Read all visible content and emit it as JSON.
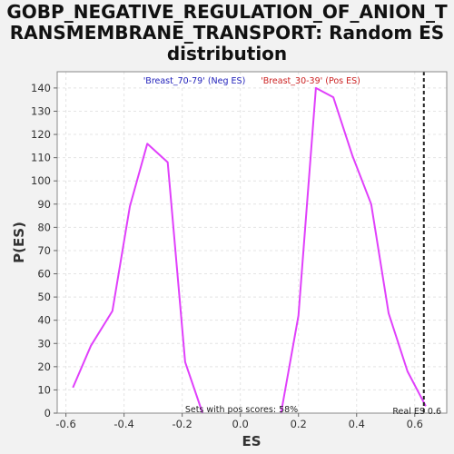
{
  "chart_data": {
    "type": "line",
    "title_lines": [
      "GOBP_NEGATIVE_REGULATION_OF_ANION_T",
      "RANSMEMBRANE_TRANSPORT: Random ES",
      "distribution"
    ],
    "xlabel": "ES",
    "ylabel": "P(ES)",
    "xlim": [
      -0.63,
      0.71
    ],
    "ylim": [
      0,
      147
    ],
    "xticks": [
      -0.6,
      -0.4,
      -0.2,
      0.0,
      0.2,
      0.4,
      0.6
    ],
    "xtick_labels": [
      "-0.6",
      "-0.4",
      "-0.2",
      "0.0",
      "0.2",
      "0.4",
      "0.6"
    ],
    "yticks": [
      0,
      10,
      20,
      30,
      40,
      50,
      60,
      70,
      80,
      90,
      100,
      110,
      120,
      130,
      140
    ],
    "ytick_labels": [
      "0",
      "10",
      "20",
      "30",
      "40",
      "50",
      "60",
      "70",
      "80",
      "90",
      "100",
      "110",
      "120",
      "130",
      "140"
    ],
    "grid": true,
    "series": [
      {
        "name": "'Breast_70-79' (Neg ES)",
        "color": "#e040fb",
        "x": [
          -0.576,
          -0.514,
          -0.44,
          -0.38,
          -0.32,
          -0.25,
          -0.19,
          -0.13
        ],
        "y": [
          11,
          29,
          44,
          89,
          116,
          108,
          22,
          0
        ]
      },
      {
        "name": "'Breast_30-39' (Pos ES)",
        "color": "#e040fb",
        "x": [
          0.14,
          0.2,
          0.26,
          0.32,
          0.385,
          0.45,
          0.51,
          0.575,
          0.638
        ],
        "y": [
          0,
          42,
          140,
          136,
          111,
          90,
          43,
          18,
          3
        ]
      }
    ],
    "legend": [
      {
        "label": "'Breast_70-79' (Neg ES)",
        "color": "#2222bb"
      },
      {
        "label": "'Breast_30-39' (Pos ES)",
        "color": "#cc2222"
      }
    ],
    "legend_position": "top-center",
    "real_es": {
      "value": 0.6,
      "label": "Real ES 0.6",
      "color": "#222222"
    },
    "annotation": "Sets with pos scores: 58%"
  }
}
